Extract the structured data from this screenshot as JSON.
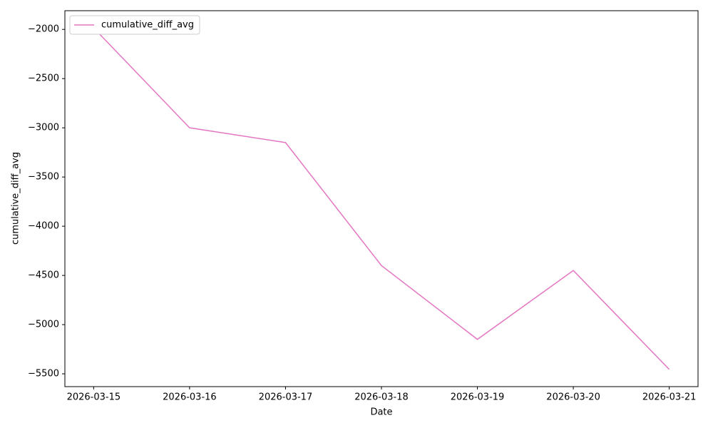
{
  "chart_data": {
    "type": "line",
    "x": [
      "2026-03-15",
      "2026-03-16",
      "2026-03-17",
      "2026-03-18",
      "2026-03-19",
      "2026-03-20",
      "2026-03-21"
    ],
    "series": [
      {
        "name": "cumulative_diff_avg",
        "color": "#e377c2",
        "values": [
          -1985,
          -3000,
          -3150,
          -4400,
          -5150,
          -4450,
          -5455
        ]
      }
    ],
    "xlabel": "Date",
    "ylabel": "cumulative_diff_avg",
    "ylim": [
      -5630,
      -1810
    ],
    "yticks": [
      {
        "value": -2000,
        "label": "−2000"
      },
      {
        "value": -2500,
        "label": "−2500"
      },
      {
        "value": -3000,
        "label": "−3000"
      },
      {
        "value": -3500,
        "label": "−3500"
      },
      {
        "value": -4000,
        "label": "−4000"
      },
      {
        "value": -4500,
        "label": "−4500"
      },
      {
        "value": -5000,
        "label": "−5000"
      },
      {
        "value": -5500,
        "label": "−5500"
      }
    ],
    "legend": "upper-left",
    "grid": false
  }
}
